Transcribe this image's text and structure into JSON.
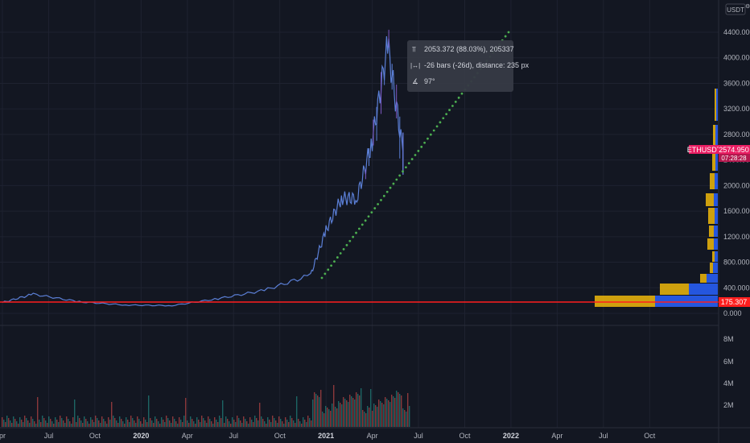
{
  "currency_label": "USDT",
  "symbol": "ETHUSDT",
  "last_price": "2574.950",
  "countdown": "07:28:28",
  "hline_price": "175.307",
  "tooltip": {
    "range_text": "2053.372 (88.03%), 205337",
    "bars_text": "-26 bars (-26d), distance: 235 px",
    "angle_text": "97°"
  },
  "colors": {
    "background": "#131722",
    "candle": "#5b7fd6",
    "candle_alt": "#7e57c2",
    "trendline": "#4caf50",
    "hline": "#ff1e1e",
    "symbol_tag": "#e91e63",
    "vp_up": "#2962ff",
    "vp_down": "#f0b90b"
  },
  "chart_data": {
    "type": "line",
    "y_axis_labels": [
      "4400.000",
      "4000.000",
      "3600.000",
      "3200.000",
      "2800.000",
      "2400.000",
      "2000.000",
      "1600.000",
      "1200.000",
      "800.000",
      "400.000",
      "0.000"
    ],
    "volume_axis_labels": [
      "8M",
      "6M",
      "4M",
      "2M"
    ],
    "x_axis_labels": [
      "pr",
      "Jul",
      "Oct",
      "2020",
      "Apr",
      "Jul",
      "Oct",
      "2021",
      "Apr",
      "Jul",
      "Oct",
      "2022",
      "Apr",
      "Jul",
      "Oct"
    ],
    "series": [
      {
        "x": [
          "2019-04",
          "2019-06",
          "2019-09",
          "2019-12",
          "2020-03",
          "2020-06",
          "2020-09",
          "2020-12",
          "2021-01",
          "2021-02",
          "2021-03",
          "2021-04",
          "2021-05",
          "2021-06"
        ],
        "values": [
          170,
          300,
          180,
          130,
          120,
          230,
          360,
          600,
          1300,
          1800,
          1800,
          2700,
          4200,
          2500
        ]
      }
    ],
    "ylim": [
      0,
      4500
    ]
  }
}
